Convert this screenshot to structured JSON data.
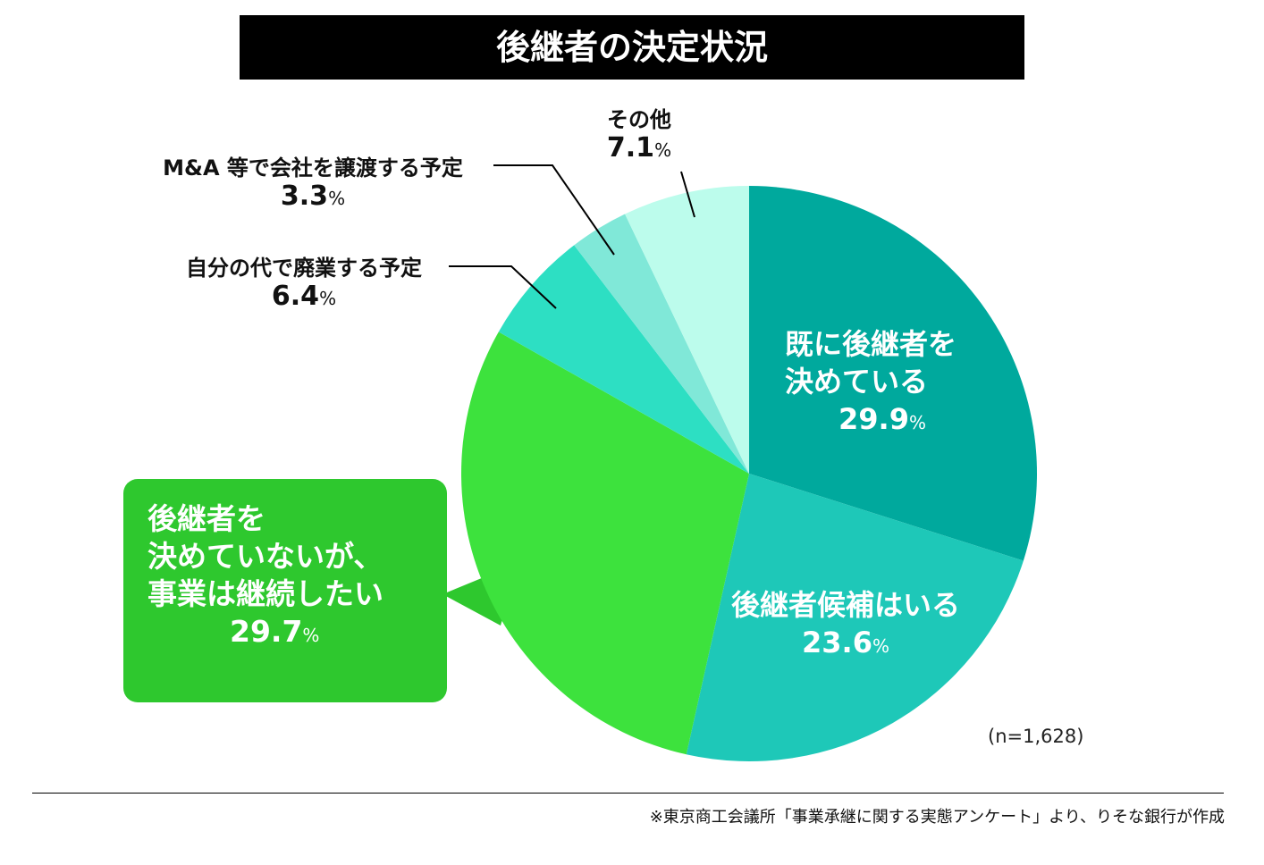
{
  "chart_data": {
    "type": "pie",
    "title": "後継者の決定状況",
    "start": "12 o'clock, clockwise",
    "slices": [
      {
        "label": "既に後継者を決めている",
        "value": 29.9,
        "color": "#00a99d"
      },
      {
        "label": "後継者候補はいる",
        "value": 23.6,
        "color": "#1ec8b8"
      },
      {
        "label": "後継者を決めていないが、事業は継続したい",
        "value": 29.7,
        "color": "#3de23d"
      },
      {
        "label": "自分の代で廃業する予定",
        "value": 6.4,
        "color": "#2ddfc3"
      },
      {
        "label": "M&A 等で会社を譲渡する予定",
        "value": 3.3,
        "color": "#80e8d8"
      },
      {
        "label": "その他",
        "value": 7.1,
        "color": "#bcfcec"
      }
    ],
    "unit": "%",
    "sample": "(n=1,628)"
  },
  "labels": {
    "s0": [
      "既に後継者を",
      "決めている",
      "29.9"
    ],
    "s1": [
      "後継者候補はいる",
      "23.6"
    ],
    "s2": [
      "後継者を",
      "決めていないが、",
      "事業は継続したい",
      "29.7"
    ],
    "s3": [
      "自分の代で廃業する予定",
      "6.4"
    ],
    "s4": [
      "M&A 等で会社を譲渡する予定",
      "3.3"
    ],
    "s5": [
      "その他",
      "7.1"
    ]
  },
  "callout_color": "#2ec82e",
  "source": "※東京商工会議所「事業承継に関する実態アンケート」より、りそな銀行が作成"
}
